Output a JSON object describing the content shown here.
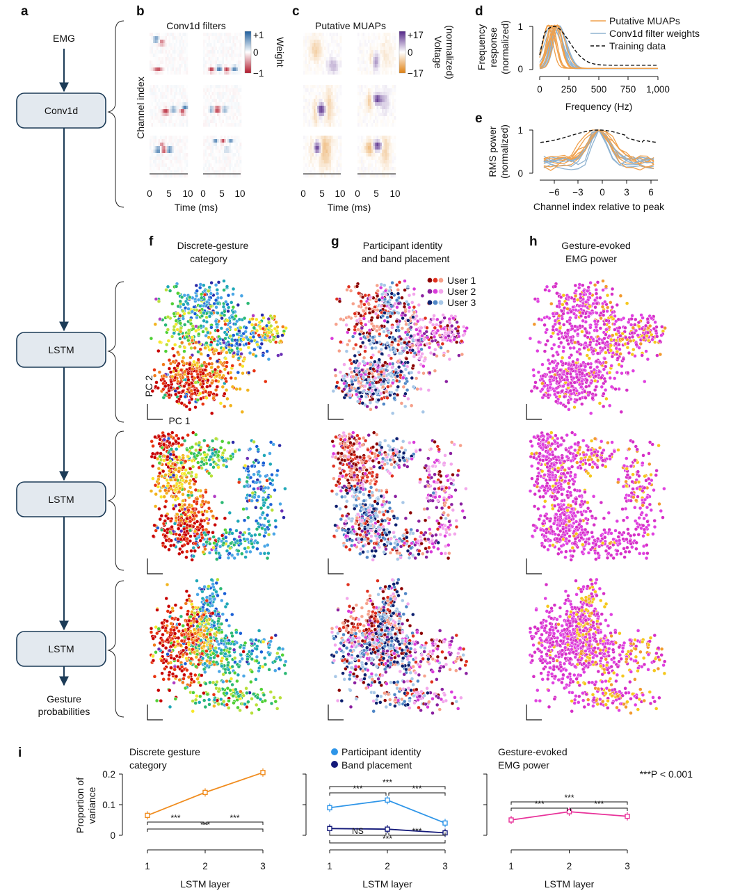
{
  "panel_labels": [
    "a",
    "b",
    "c",
    "d",
    "e",
    "f",
    "g",
    "h",
    "i"
  ],
  "flow": {
    "input_label": "EMG",
    "nodes": [
      "Conv1d",
      "LSTM",
      "LSTM",
      "LSTM"
    ],
    "output_label": [
      "Gesture",
      "probabilities"
    ]
  },
  "panel_b": {
    "title": "Conv1d filters",
    "ylabel": "Channel index",
    "xlabel": "Time (ms)",
    "xticks": [
      "0",
      "5",
      "10"
    ],
    "colorbar": {
      "ticks": [
        "+1",
        "0",
        "−1"
      ],
      "label": "Weight",
      "colors": [
        "#1f5f9e",
        "#ffffff",
        "#b2182b"
      ]
    }
  },
  "panel_c": {
    "title": "Putative MUAPs",
    "xlabel": "Time (ms)",
    "xticks": [
      "0",
      "5",
      "10"
    ],
    "colorbar": {
      "ticks": [
        "+17",
        "0",
        "−17"
      ],
      "label": [
        "Voltage",
        "(normalized)"
      ],
      "colors": [
        "#542788",
        "#ffffff",
        "#e08214"
      ]
    }
  },
  "panel_d": {
    "ylabel": [
      "Frequency",
      "response",
      "(normalized)"
    ],
    "xlabel": "Frequency (Hz)",
    "xticks": [
      "0",
      "250",
      "500",
      "750",
      "1,000"
    ],
    "yticks": [
      "0",
      "1"
    ],
    "legend": [
      "Putative MUAPs",
      "Conv1d filter weights",
      "Training data"
    ]
  },
  "panel_e": {
    "ylabel": [
      "RMS power",
      "(normalized)"
    ],
    "xlabel": "Channel index relative to peak",
    "xticks": [
      "−6",
      "−3",
      "0",
      "3",
      "6"
    ],
    "yticks": [
      "0",
      "1"
    ]
  },
  "panel_f": {
    "title": [
      "Discrete-gesture",
      "category"
    ],
    "axis_labels": [
      "PC 2",
      "PC 1"
    ]
  },
  "panel_g": {
    "title": [
      "Participant identity",
      "and band placement"
    ],
    "legend": [
      "User 1",
      "User 2",
      "User 3"
    ]
  },
  "panel_h": {
    "title": [
      "Gesture-evoked",
      "EMG power"
    ]
  },
  "panel_i": {
    "ylabel": [
      "Proportion of",
      "variance"
    ],
    "xlabel": "LSTM layer",
    "footnote": "***P < 0.001",
    "subplots": [
      {
        "title": [
          "Discrete gesture",
          "category"
        ]
      },
      {
        "legend": [
          "Participant identity",
          "Band placement"
        ]
      },
      {
        "title": [
          "Gesture-evoked",
          "EMG power"
        ]
      }
    ]
  },
  "chart_data": [
    {
      "type": "line",
      "title": "Discrete gesture category",
      "xlabel": "LSTM layer",
      "ylabel": "Proportion of variance",
      "x": [
        1,
        2,
        3
      ],
      "ylim": [
        0,
        0.2
      ],
      "yticks": [
        0,
        0.1,
        0.2
      ],
      "color": "#f08c1e",
      "series": [
        {
          "values": [
            0.065,
            0.14,
            0.205
          ]
        }
      ],
      "significance": [
        {
          "pair": [
            1,
            2
          ],
          "label": "***"
        },
        {
          "pair": [
            2,
            3
          ],
          "label": "***"
        },
        {
          "pair": [
            1,
            3
          ],
          "label": "***"
        }
      ]
    },
    {
      "type": "line",
      "xlabel": "LSTM layer",
      "x": [
        1,
        2,
        3
      ],
      "ylim": [
        0,
        0.2
      ],
      "series": [
        {
          "name": "Participant identity",
          "values": [
            0.09,
            0.115,
            0.04
          ],
          "color": "#2e95e8"
        },
        {
          "name": "Band placement",
          "values": [
            0.022,
            0.02,
            0.008
          ],
          "color": "#141a7a"
        }
      ],
      "significance": [
        {
          "pair": [
            1,
            2
          ],
          "label": "***",
          "series": "Participant identity"
        },
        {
          "pair": [
            2,
            3
          ],
          "label": "***",
          "series": "Participant identity"
        },
        {
          "pair": [
            1,
            3
          ],
          "label": "***",
          "series": "Participant identity"
        },
        {
          "pair": [
            1,
            2
          ],
          "label": "NS",
          "series": "Band placement"
        },
        {
          "pair": [
            2,
            3
          ],
          "label": "***",
          "series": "Band placement"
        },
        {
          "pair": [
            1,
            3
          ],
          "label": "***",
          "series": "Band placement"
        }
      ]
    },
    {
      "type": "line",
      "title": "Gesture-evoked EMG power",
      "xlabel": "LSTM layer",
      "x": [
        1,
        2,
        3
      ],
      "ylim": [
        0,
        0.2
      ],
      "color": "#e8329a",
      "series": [
        {
          "values": [
            0.05,
            0.077,
            0.062
          ]
        }
      ],
      "significance": [
        {
          "pair": [
            1,
            2
          ],
          "label": "***"
        },
        {
          "pair": [
            2,
            3
          ],
          "label": "***"
        },
        {
          "pair": [
            1,
            3
          ],
          "label": "***"
        }
      ]
    }
  ]
}
